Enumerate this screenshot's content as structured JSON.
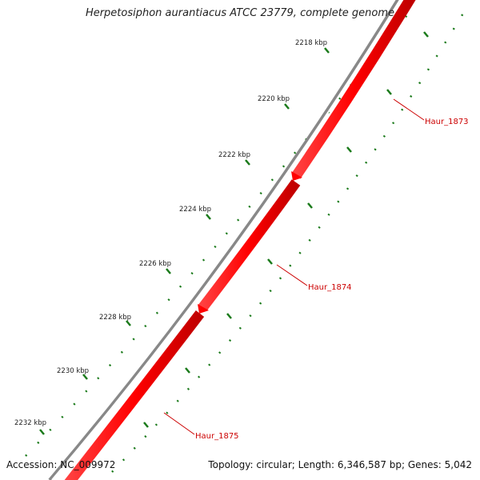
{
  "title": "Herpetosiphon aurantiacus ATCC 23779, complete genome",
  "footer": {
    "accession": "Accession: NC_009972",
    "summary": "Topology: circular; Length: 6,346,587 bp; Genes: 5,042"
  },
  "ticks": [
    "2218 kbp",
    "2220 kbp",
    "2222 kbp",
    "2224 kbp",
    "2226 kbp",
    "2228 kbp",
    "2230 kbp",
    "2232 kbp"
  ],
  "genes": [
    "Haur_1873",
    "Haur_1874",
    "Haur_1875"
  ],
  "colors": {
    "gene_fill": "#ff0000",
    "gene_dark": "#cc0000",
    "backbone": "#888888",
    "tick_marks": "#1a7a1a",
    "label_text": "#cc0000"
  }
}
